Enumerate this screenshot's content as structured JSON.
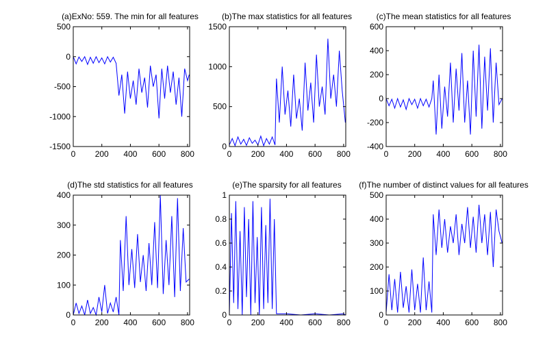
{
  "figure": {
    "background": "#ffffff",
    "line_color": "#0000ff",
    "axis_color": "#000000"
  },
  "chart_data": [
    {
      "type": "line",
      "title": "(a)ExNo: 559. The min for all features",
      "xlim": [
        0,
        815
      ],
      "ylim": [
        -1500,
        500
      ],
      "xticks": [
        0,
        200,
        400,
        600,
        800
      ],
      "yticks": [
        -1500,
        -1000,
        -500,
        0,
        500
      ],
      "grid": false,
      "series": [
        {
          "x": [
            0,
            20,
            40,
            60,
            80,
            100,
            120,
            140,
            160,
            180,
            200,
            220,
            240,
            260,
            280,
            300,
            320,
            340,
            360,
            380,
            400,
            420,
            440,
            460,
            480,
            500,
            520,
            540,
            560,
            580,
            600,
            620,
            640,
            660,
            680,
            700,
            720,
            740,
            760,
            780,
            800,
            812
          ],
          "y": [
            0,
            -120,
            -5,
            -80,
            0,
            -130,
            -10,
            -110,
            0,
            -100,
            -20,
            -120,
            0,
            -90,
            -10,
            -110,
            -650,
            -300,
            -950,
            -250,
            -700,
            -400,
            -800,
            -200,
            -600,
            -350,
            -850,
            -150,
            -500,
            -300,
            -1030,
            -200,
            -700,
            -150,
            -600,
            -250,
            -800,
            -350,
            -1000,
            -200,
            -400,
            -300
          ]
        }
      ]
    },
    {
      "type": "line",
      "title": "(b)The max statistics for all features",
      "xlim": [
        0,
        815
      ],
      "ylim": [
        0,
        1500
      ],
      "xticks": [
        0,
        200,
        400,
        600,
        800
      ],
      "yticks": [
        0,
        500,
        1000,
        1500
      ],
      "grid": false,
      "series": [
        {
          "x": [
            0,
            20,
            40,
            60,
            80,
            100,
            120,
            140,
            160,
            180,
            200,
            220,
            240,
            260,
            280,
            300,
            320,
            330,
            350,
            370,
            390,
            410,
            430,
            450,
            470,
            490,
            510,
            530,
            550,
            570,
            590,
            610,
            630,
            650,
            670,
            690,
            710,
            730,
            750,
            770,
            790,
            812
          ],
          "y": [
            20,
            100,
            10,
            120,
            30,
            90,
            15,
            110,
            40,
            80,
            20,
            130,
            10,
            100,
            30,
            120,
            20,
            850,
            300,
            1000,
            400,
            700,
            250,
            900,
            350,
            600,
            200,
            1050,
            450,
            800,
            300,
            1150,
            500,
            750,
            400,
            1350,
            600,
            900,
            500,
            1200,
            700,
            300
          ]
        }
      ]
    },
    {
      "type": "line",
      "title": "(c)The mean statistics for all features",
      "xlim": [
        0,
        815
      ],
      "ylim": [
        -400,
        600
      ],
      "xticks": [
        0,
        200,
        400,
        600,
        800
      ],
      "yticks": [
        -400,
        -200,
        0,
        200,
        400,
        600
      ],
      "grid": false,
      "series": [
        {
          "x": [
            0,
            20,
            40,
            60,
            80,
            100,
            120,
            140,
            160,
            180,
            200,
            220,
            240,
            260,
            280,
            300,
            320,
            330,
            350,
            370,
            390,
            410,
            430,
            450,
            470,
            490,
            510,
            530,
            550,
            570,
            590,
            610,
            630,
            650,
            670,
            690,
            710,
            730,
            750,
            770,
            790,
            812
          ],
          "y": [
            0,
            -60,
            -5,
            -80,
            0,
            -70,
            -10,
            -90,
            0,
            -50,
            -5,
            -80,
            0,
            -60,
            -5,
            -70,
            0,
            150,
            -300,
            200,
            -250,
            100,
            -150,
            300,
            -200,
            250,
            -100,
            380,
            -200,
            150,
            -300,
            400,
            -150,
            450,
            -250,
            350,
            -100,
            420,
            -200,
            300,
            -50,
            0
          ]
        }
      ]
    },
    {
      "type": "line",
      "title": "(d)The std statistics for all features",
      "xlim": [
        0,
        815
      ],
      "ylim": [
        0,
        400
      ],
      "xticks": [
        0,
        200,
        400,
        600,
        800
      ],
      "yticks": [
        0,
        100,
        200,
        300,
        400
      ],
      "grid": false,
      "series": [
        {
          "x": [
            0,
            20,
            40,
            60,
            80,
            100,
            120,
            140,
            160,
            180,
            200,
            220,
            240,
            260,
            280,
            300,
            320,
            330,
            350,
            370,
            390,
            410,
            430,
            450,
            470,
            490,
            510,
            530,
            550,
            570,
            590,
            610,
            630,
            650,
            670,
            690,
            710,
            730,
            750,
            770,
            790,
            812
          ],
          "y": [
            0,
            40,
            5,
            30,
            0,
            50,
            5,
            25,
            0,
            60,
            10,
            100,
            5,
            40,
            10,
            60,
            0,
            250,
            80,
            330,
            100,
            220,
            90,
            270,
            110,
            200,
            80,
            240,
            100,
            310,
            90,
            400,
            70,
            250,
            100,
            330,
            60,
            390,
            80,
            290,
            110,
            120
          ]
        }
      ]
    },
    {
      "type": "line",
      "title": "(e)The sparsity for all features",
      "xlim": [
        0,
        815
      ],
      "ylim": [
        0,
        1
      ],
      "xticks": [
        0,
        200,
        400,
        600,
        800
      ],
      "yticks": [
        0,
        0.2,
        0.4,
        0.6,
        0.8,
        1
      ],
      "grid": false,
      "series": [
        {
          "x": [
            0,
            15,
            30,
            45,
            60,
            75,
            90,
            105,
            120,
            135,
            150,
            165,
            180,
            195,
            210,
            225,
            240,
            255,
            270,
            285,
            300,
            315,
            330,
            400,
            500,
            600,
            700,
            800,
            812
          ],
          "y": [
            0,
            0.85,
            0.1,
            0.95,
            0.05,
            0.7,
            0,
            0.9,
            0.15,
            0.8,
            0,
            0.95,
            0.1,
            0.65,
            0,
            0.9,
            0.05,
            0.75,
            0.1,
            0.97,
            0.05,
            0.8,
            0.01,
            0.01,
            0.0,
            0.01,
            0.0,
            0.01,
            0.0
          ]
        }
      ]
    },
    {
      "type": "line",
      "title": "(f)The number of distinct values for all features",
      "xlim": [
        0,
        815
      ],
      "ylim": [
        0,
        500
      ],
      "xticks": [
        0,
        200,
        400,
        600,
        800
      ],
      "yticks": [
        0,
        100,
        200,
        300,
        400,
        500
      ],
      "grid": false,
      "series": [
        {
          "x": [
            0,
            20,
            40,
            60,
            80,
            100,
            120,
            140,
            160,
            180,
            200,
            220,
            240,
            260,
            280,
            300,
            320,
            330,
            350,
            370,
            390,
            410,
            430,
            450,
            470,
            490,
            510,
            530,
            550,
            570,
            590,
            610,
            630,
            650,
            670,
            690,
            710,
            730,
            750,
            770,
            790,
            812
          ],
          "y": [
            10,
            170,
            20,
            150,
            10,
            180,
            30,
            120,
            10,
            190,
            20,
            130,
            10,
            240,
            20,
            140,
            10,
            420,
            250,
            440,
            280,
            400,
            260,
            370,
            300,
            420,
            250,
            380,
            300,
            450,
            280,
            410,
            260,
            460,
            300,
            420,
            250,
            430,
            200,
            440,
            350,
            300
          ]
        }
      ]
    }
  ]
}
